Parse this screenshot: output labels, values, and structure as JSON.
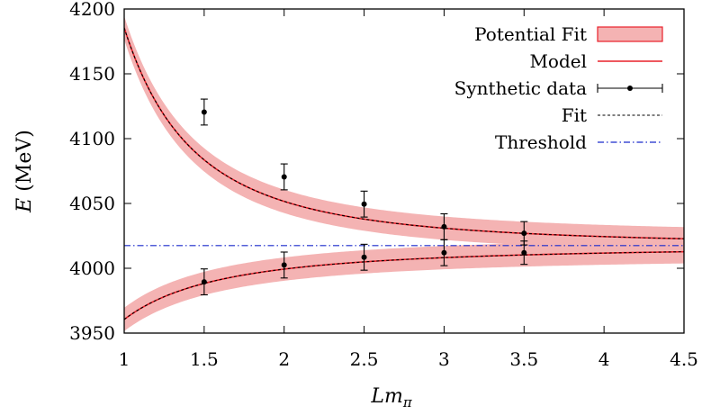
{
  "chart_data": {
    "type": "line",
    "xlim": [
      1,
      4.5
    ],
    "ylim": [
      3950,
      4200
    ],
    "xlabel": {
      "main": "Lm",
      "sub": "π"
    },
    "ylabel": {
      "italic": "E",
      "rest": " (MeV)"
    },
    "xticks": [
      1,
      1.5,
      2,
      2.5,
      3,
      3.5,
      4,
      4.5
    ],
    "yticks": [
      3950,
      4000,
      4050,
      4100,
      4150,
      4200
    ],
    "threshold": 4017.5,
    "upper_level": {
      "model": {
        "offset": 4017.5,
        "amplitude": 168,
        "power": 2.3,
        "band_halfwidth": 9
      }
    },
    "lower_level": {
      "model": {
        "offset": 4017.5,
        "amplitude": -57,
        "power": 1.65,
        "band_halfwidth": 9
      }
    },
    "series": [
      {
        "name": "Potential Fit",
        "kind": "band",
        "color": "#f4b3b3"
      },
      {
        "name": "Model",
        "kind": "line",
        "color": "#e8202a"
      },
      {
        "name": "Synthetic data",
        "kind": "errorbars",
        "color": "#000000",
        "points": [
          {
            "x": 1.5,
            "y": 4120.5,
            "err": 10
          },
          {
            "x": 2.0,
            "y": 4070.5,
            "err": 10
          },
          {
            "x": 2.5,
            "y": 4049.5,
            "err": 10
          },
          {
            "x": 3.0,
            "y": 4032.0,
            "err": 10
          },
          {
            "x": 3.5,
            "y": 4027.0,
            "err": 9
          },
          {
            "x": 1.5,
            "y": 3989.5,
            "err": 10
          },
          {
            "x": 2.0,
            "y": 4002.5,
            "err": 10
          },
          {
            "x": 2.5,
            "y": 4008.5,
            "err": 10
          },
          {
            "x": 3.0,
            "y": 4012.0,
            "err": 10
          },
          {
            "x": 3.5,
            "y": 4012.0,
            "err": 9
          }
        ]
      },
      {
        "name": "Fit",
        "kind": "dashed-line",
        "color": "#000000"
      },
      {
        "name": "Threshold",
        "kind": "dashdot-line",
        "color": "#1a2acc"
      }
    ],
    "legend_position": "top-right",
    "grid": false
  }
}
